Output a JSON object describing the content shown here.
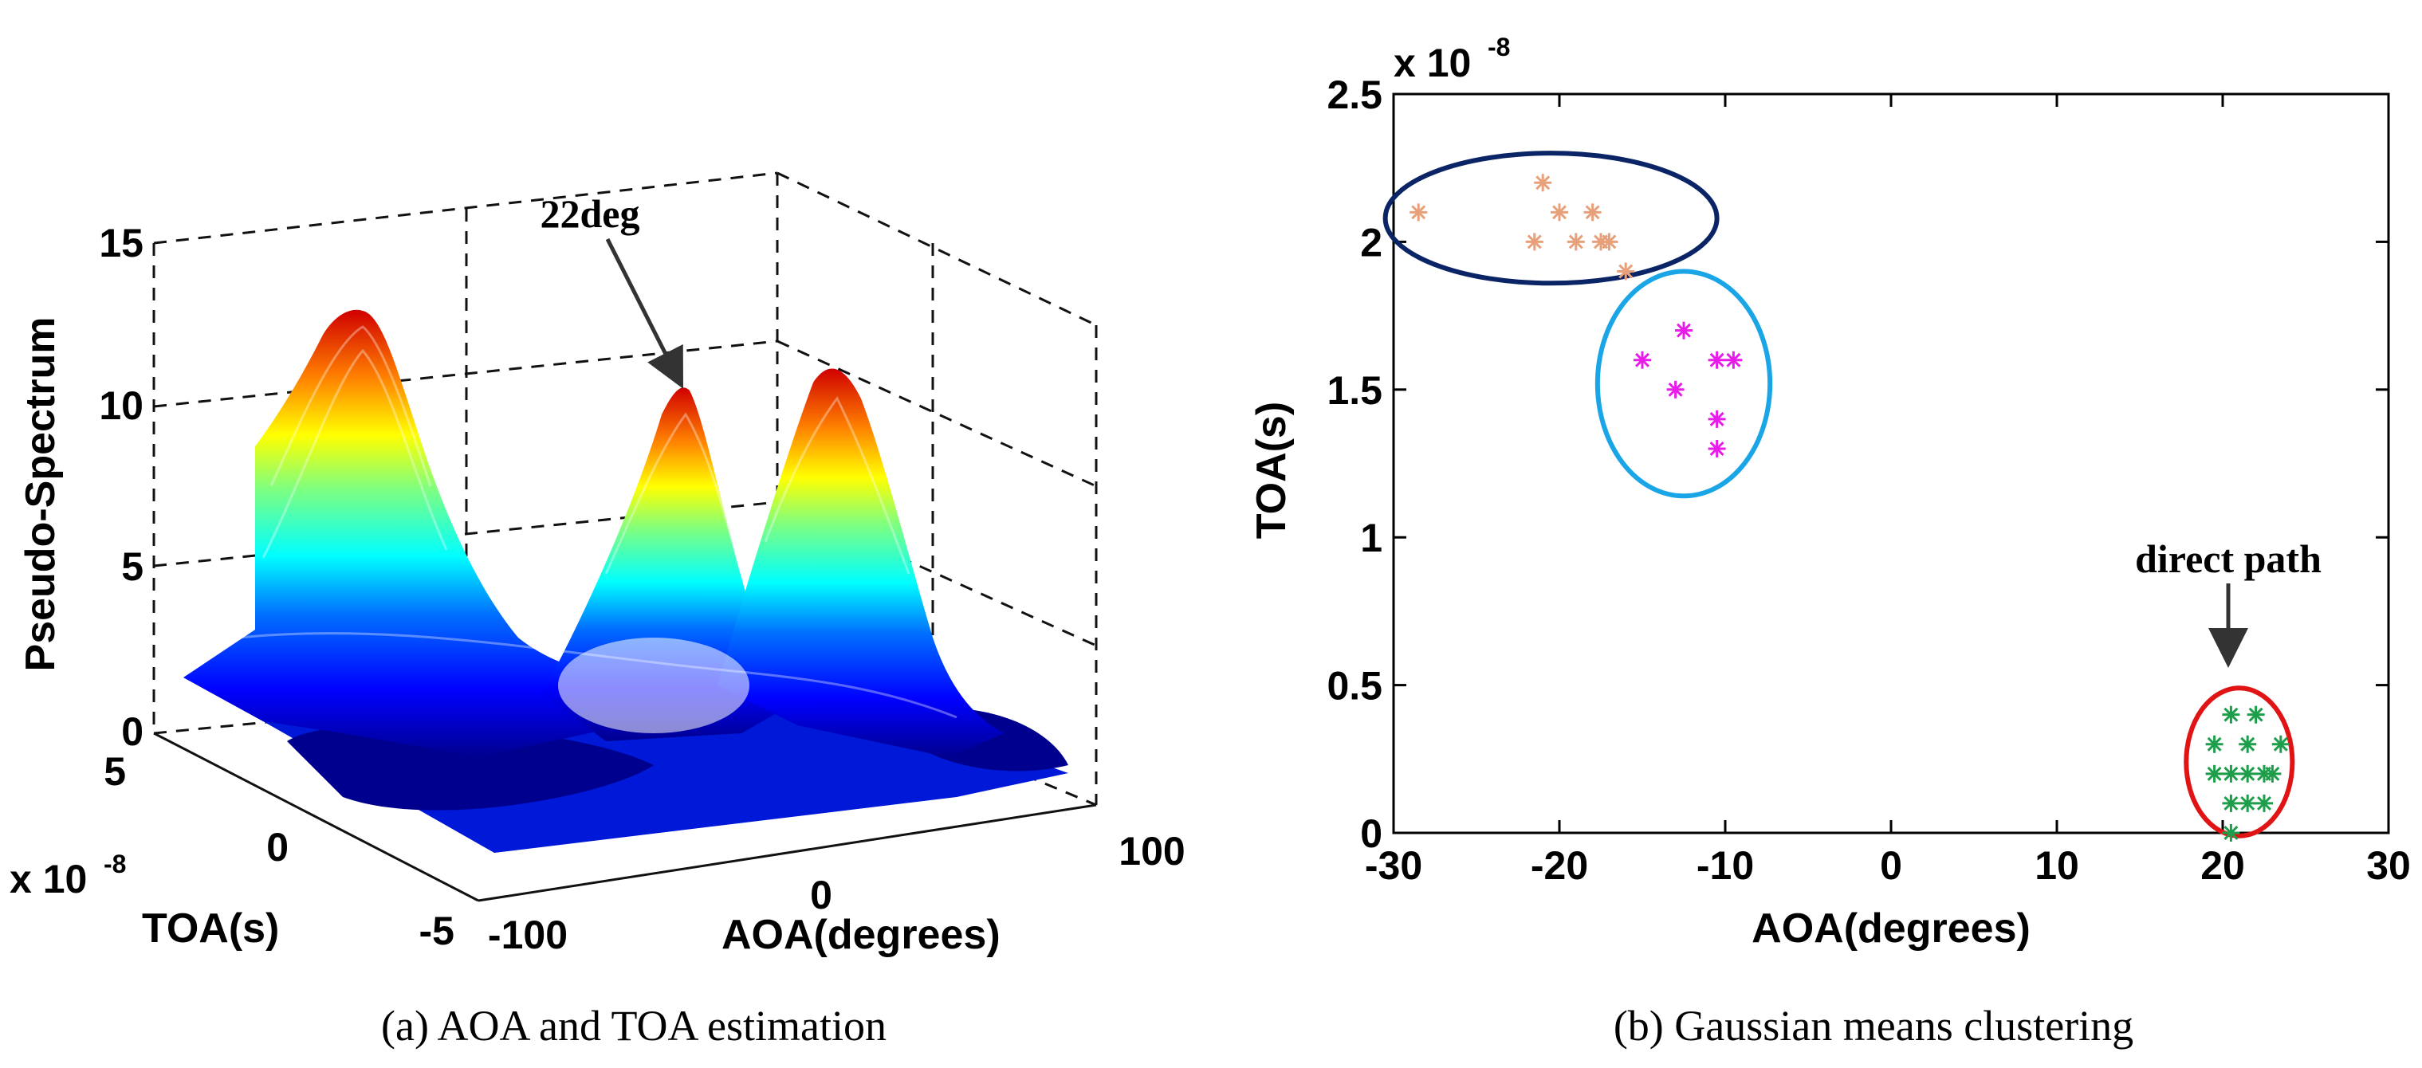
{
  "captions": {
    "a": "(a)  AOA and TOA estimation",
    "b": "(b)  Gaussian means clustering"
  },
  "chart_data": [
    {
      "id": "a",
      "type": "surface3d",
      "title": "",
      "xlabel": "AOA(degrees)",
      "ylabel": "TOA(s)",
      "zlabel": "Pseudo-Spectrum",
      "xlim": [
        -100,
        100
      ],
      "ylim": [
        -5,
        5
      ],
      "zlim": [
        0,
        15
      ],
      "xticks": [
        "-100",
        "0",
        "100"
      ],
      "yticks": [
        "-5",
        "0",
        "5"
      ],
      "zticks": [
        "0",
        "5",
        "10",
        "15"
      ],
      "y_exponent": "x 10",
      "y_exponent_power": "-8",
      "colormap": "jet",
      "peaks": [
        {
          "aoa": -85,
          "toa_e8": 2.5,
          "height": 13
        },
        {
          "aoa": 22,
          "toa_e8": 0.5,
          "height": 10.5
        },
        {
          "aoa": 55,
          "toa_e8": 3.0,
          "height": 11
        }
      ],
      "annotations": [
        {
          "text": "22deg",
          "target": "peak-aoa-22"
        }
      ]
    },
    {
      "id": "b",
      "type": "scatter",
      "title": "",
      "xlabel": "AOA(degrees)",
      "ylabel": "TOA(s)",
      "xlim": [
        -30,
        30
      ],
      "ylim": [
        0,
        2.5
      ],
      "xticks": [
        -30,
        -20,
        -10,
        0,
        10,
        20,
        30
      ],
      "yticks": [
        0,
        0.5,
        1,
        1.5,
        2,
        2.5
      ],
      "y_exponent": "x 10",
      "y_exponent_power": "-8",
      "grid": false,
      "series": [
        {
          "name": "cluster-1",
          "color": "#e8a07a",
          "points": [
            [
              -28.5,
              2.1
            ],
            [
              -21,
              2.2
            ],
            [
              -21.5,
              2.0
            ],
            [
              -20,
              2.1
            ],
            [
              -18,
              2.1
            ],
            [
              -17.5,
              2.0
            ],
            [
              -17,
              2.0
            ],
            [
              -19,
              2.0
            ],
            [
              -16,
              1.9
            ]
          ]
        },
        {
          "name": "cluster-2",
          "color": "#e81ce8",
          "points": [
            [
              -12.5,
              1.7
            ],
            [
              -15,
              1.6
            ],
            [
              -13,
              1.5
            ],
            [
              -10.5,
              1.6
            ],
            [
              -9.5,
              1.6
            ],
            [
              -10.5,
              1.4
            ],
            [
              -10.5,
              1.3
            ]
          ]
        },
        {
          "name": "cluster-3",
          "color": "#1e9e4a",
          "points": [
            [
              19.5,
              0.3
            ],
            [
              20.5,
              0.4
            ],
            [
              22,
              0.4
            ],
            [
              21.5,
              0.3
            ],
            [
              23.5,
              0.3
            ],
            [
              19.5,
              0.2
            ],
            [
              20.5,
              0.2
            ],
            [
              21.5,
              0.2
            ],
            [
              22.5,
              0.2
            ],
            [
              23,
              0.2
            ],
            [
              20.5,
              0.1
            ],
            [
              21.5,
              0.1
            ],
            [
              22.5,
              0.1
            ],
            [
              20.5,
              0.0
            ]
          ]
        }
      ],
      "ellipses": [
        {
          "name": "ellipse-dark-blue",
          "color": "#0a2466",
          "cx": -20.5,
          "cy": 2.08,
          "rx": 10,
          "ry": 0.22
        },
        {
          "name": "ellipse-light-blue",
          "color": "#1aa6e6",
          "cx": -12.5,
          "cy": 1.52,
          "rx": 5.2,
          "ry": 0.38
        },
        {
          "name": "ellipse-red",
          "color": "#e01414",
          "cx": 21,
          "cy": 0.24,
          "rx": 3.2,
          "ry": 0.25
        }
      ],
      "annotations": [
        {
          "text": "direct path",
          "target": "cluster-3"
        }
      ]
    }
  ]
}
